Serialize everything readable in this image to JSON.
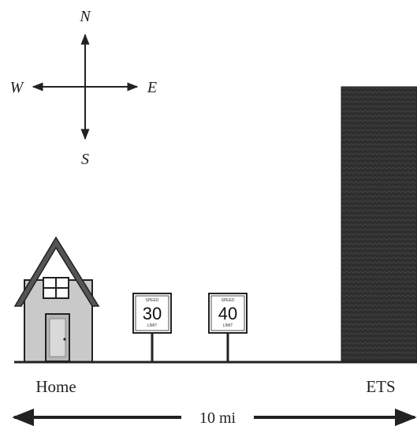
{
  "compass": {
    "north": "N",
    "south": "S",
    "west": "W",
    "east": "E"
  },
  "places": {
    "home": "Home",
    "destination": "ETS"
  },
  "signs": [
    {
      "top": "SPEED",
      "value": "30",
      "bottom": "LIMIT"
    },
    {
      "top": "SPEED",
      "value": "40",
      "bottom": "LIMIT"
    }
  ],
  "distance": {
    "label": "10 mi"
  },
  "colors": {
    "house_wall": "#c9c9c9",
    "building": "#333333",
    "line": "#222222"
  }
}
